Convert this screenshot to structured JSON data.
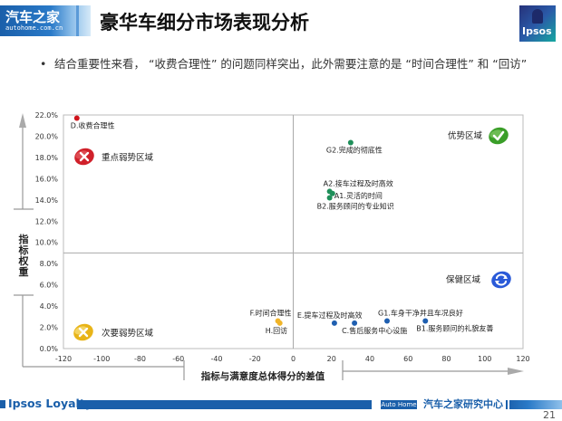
{
  "header": {
    "logo_left_cn": "汽车之家",
    "logo_left_en": "autohome.com.cn",
    "title": "豪华车细分市场表现分析",
    "logo_right": "Ipsos"
  },
  "bullet": {
    "marker": "•",
    "text": "结合重要性来看， “收费合理性” 的问题同样突出，此外需要注意的是 “时间合理性” 和 “回访”"
  },
  "footer": {
    "brand": "Ipsos Loyalty",
    "tag": "Auto Home",
    "center": "汽车之家研究中心",
    "page_number": "21"
  },
  "colors": {
    "brand_blue": "#1a5faa",
    "red_point": "#d0141c",
    "green_point": "#1f8f5a",
    "blue_point": "#1f5fb0",
    "yellow_point": "#f0b428"
  },
  "chart_data": {
    "type": "scatter",
    "title": "",
    "xlabel": "指标与满意度总体得分的差值",
    "ylabel": "指标权重",
    "xlim": [
      -120,
      120
    ],
    "ylim": [
      0,
      22
    ],
    "x_ticks": [
      -120,
      -100,
      -80,
      -60,
      -40,
      -20,
      0,
      20,
      40,
      60,
      80,
      100,
      120
    ],
    "y_ticks": [
      "0.0%",
      "2.0%",
      "4.0%",
      "6.0%",
      "8.0%",
      "10.0%",
      "12.0%",
      "14.0%",
      "16.0%",
      "18.0%",
      "20.0%",
      "22.0%"
    ],
    "quadrant_divider": {
      "x": 0,
      "y": 9.0
    },
    "quadrants": [
      {
        "label": "重点弱势区域",
        "icon": "red-x-icon",
        "position": "top-left"
      },
      {
        "label": "优势区域",
        "icon": "green-check-icon",
        "position": "top-right"
      },
      {
        "label": "次要弱势区域",
        "icon": "yellow-x-icon",
        "position": "bottom-left"
      },
      {
        "label": "保健区域",
        "icon": "blue-refresh-icon",
        "position": "bottom-right"
      }
    ],
    "points": [
      {
        "label": "D.收费合理性",
        "x": -113,
        "y": 21.7,
        "color": "#d0141c"
      },
      {
        "label": "G2.完成的彻底性",
        "x": 30,
        "y": 19.4,
        "color": "#1f8f5a"
      },
      {
        "label": "A2.接车过程及时高效",
        "x": 19,
        "y": 14.8,
        "color": "#1f8f5a"
      },
      {
        "label": "A1.灵活的时间",
        "x": 20.5,
        "y": 14.6,
        "color": "#1f8f5a"
      },
      {
        "label": "B2.服务顾问的专业知识",
        "x": 19,
        "y": 14.2,
        "color": "#1f8f5a"
      },
      {
        "label": "F.时间合理性",
        "x": -8,
        "y": 2.6,
        "color": "#f0b428"
      },
      {
        "label": "H.回访",
        "x": -7,
        "y": 2.4,
        "color": "#f0b428"
      },
      {
        "label": "E.提车过程及时高效",
        "x": 21.5,
        "y": 2.4,
        "color": "#1f5fb0"
      },
      {
        "label": "C.售后服务中心设施",
        "x": 32,
        "y": 2.4,
        "color": "#1f5fb0"
      },
      {
        "label": "G1.车身干净并且车况良好",
        "x": 49,
        "y": 2.6,
        "color": "#1f5fb0"
      },
      {
        "label": "B1.服务顾问的礼貌友善",
        "x": 69,
        "y": 2.6,
        "color": "#1f5fb0"
      }
    ],
    "grid": false,
    "legend": "none"
  }
}
